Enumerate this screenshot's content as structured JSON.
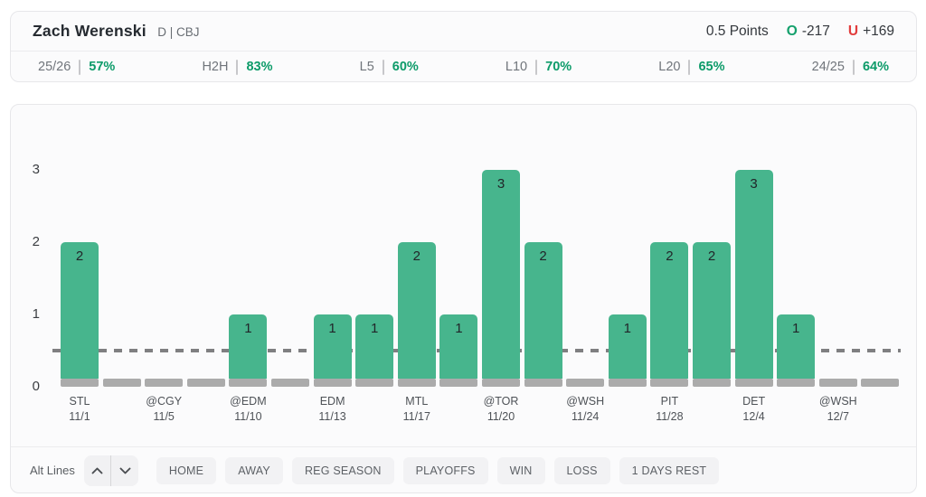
{
  "header": {
    "player_name": "Zach Werenski",
    "player_meta": "D | CBJ",
    "prop_label": "0.5 Points",
    "over": {
      "symbol": "O",
      "odds": "-217"
    },
    "under": {
      "symbol": "U",
      "odds": "+169"
    }
  },
  "splits": {
    "items": [
      {
        "label": "25/26",
        "value": "57%"
      },
      {
        "label": "H2H",
        "value": "83%"
      },
      {
        "label": "L5",
        "value": "60%"
      },
      {
        "label": "L10",
        "value": "70%"
      },
      {
        "label": "L20",
        "value": "65%"
      },
      {
        "label": "24/25",
        "value": "64%"
      }
    ]
  },
  "chart_data": {
    "type": "bar",
    "title": "",
    "xlabel": "",
    "ylabel": "",
    "ylim": [
      0,
      3.5
    ],
    "yticks": [
      0,
      1,
      2,
      3
    ],
    "grid": false,
    "legend": false,
    "prop_line": 0.5,
    "categories": [
      "STL 11/1",
      "",
      "@CGY 11/5",
      "",
      "@EDM 11/10",
      "",
      "EDM 11/13",
      "",
      "MTL 11/17",
      "",
      "@TOR 11/20",
      "",
      "@WSH 11/24",
      "",
      "PIT 11/28",
      "",
      "DET 12/4",
      "",
      "@WSH 12/7",
      ""
    ],
    "values": [
      2,
      0,
      0,
      0,
      1,
      0,
      1,
      1,
      2,
      1,
      3,
      2,
      0,
      1,
      2,
      2,
      3,
      1,
      0,
      0
    ],
    "games": [
      {
        "opponent": "STL",
        "date": "11/1",
        "value": 2
      },
      {
        "opponent": "",
        "date": "",
        "value": 0
      },
      {
        "opponent": "@CGY",
        "date": "11/5",
        "value": 0
      },
      {
        "opponent": "",
        "date": "",
        "value": 0
      },
      {
        "opponent": "@EDM",
        "date": "11/10",
        "value": 1
      },
      {
        "opponent": "",
        "date": "",
        "value": 0
      },
      {
        "opponent": "EDM",
        "date": "11/13",
        "value": 1
      },
      {
        "opponent": "",
        "date": "",
        "value": 1
      },
      {
        "opponent": "MTL",
        "date": "11/17",
        "value": 2
      },
      {
        "opponent": "",
        "date": "",
        "value": 1
      },
      {
        "opponent": "@TOR",
        "date": "11/20",
        "value": 3
      },
      {
        "opponent": "",
        "date": "",
        "value": 2
      },
      {
        "opponent": "@WSH",
        "date": "11/24",
        "value": 0
      },
      {
        "opponent": "",
        "date": "",
        "value": 1
      },
      {
        "opponent": "PIT",
        "date": "11/28",
        "value": 2
      },
      {
        "opponent": "",
        "date": "",
        "value": 2
      },
      {
        "opponent": "DET",
        "date": "12/4",
        "value": 3
      },
      {
        "opponent": "",
        "date": "",
        "value": 1
      },
      {
        "opponent": "@WSH",
        "date": "12/7",
        "value": 0
      },
      {
        "opponent": "",
        "date": "",
        "value": 0
      }
    ]
  },
  "colors": {
    "bar_green": "#47b58d",
    "bar_zero": "#ababab",
    "line_gray": "#7f7f81",
    "over_green": "#14a06c",
    "under_red": "#e23d3d",
    "split_green": "#0c9b69"
  },
  "footer": {
    "alt_lines_label": "Alt Lines",
    "filters": [
      "HOME",
      "AWAY",
      "REG SEASON",
      "PLAYOFFS",
      "WIN",
      "LOSS",
      "1 DAYS REST"
    ]
  }
}
